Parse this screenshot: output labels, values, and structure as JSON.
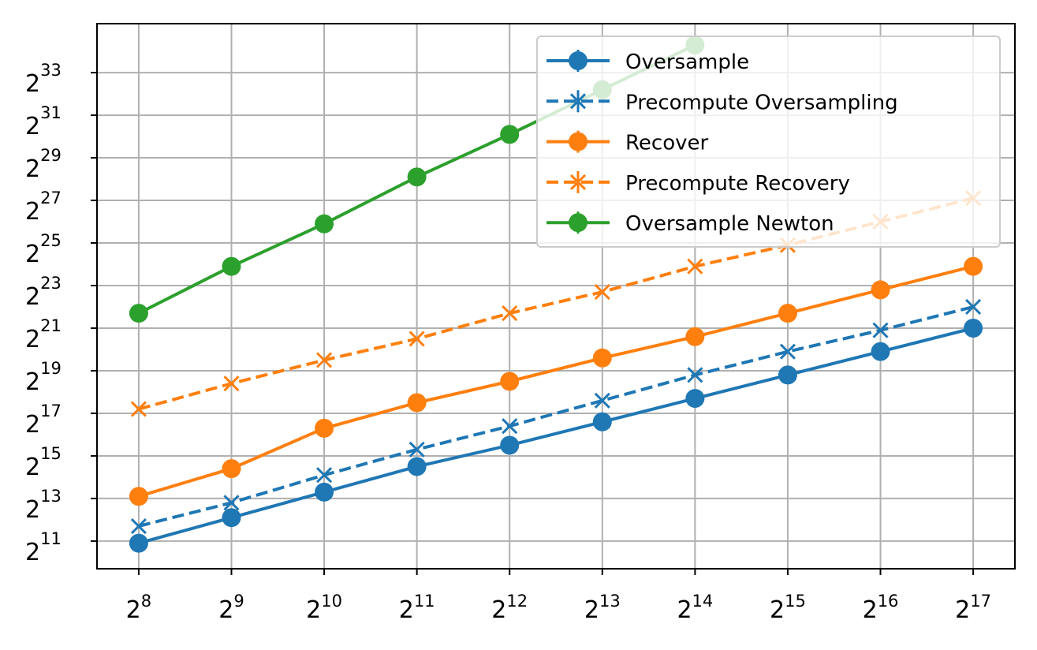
{
  "chart_data": {
    "type": "line",
    "title": "",
    "xlabel": "",
    "ylabel": "",
    "x_scale": "log2",
    "y_scale": "log2",
    "x_exponents": [
      8,
      9,
      10,
      11,
      12,
      13,
      14,
      15,
      16,
      17
    ],
    "xticks": [
      {
        "base": "2",
        "exp": "8"
      },
      {
        "base": "2",
        "exp": "9"
      },
      {
        "base": "2",
        "exp": "10"
      },
      {
        "base": "2",
        "exp": "11"
      },
      {
        "base": "2",
        "exp": "12"
      },
      {
        "base": "2",
        "exp": "13"
      },
      {
        "base": "2",
        "exp": "14"
      },
      {
        "base": "2",
        "exp": "15"
      },
      {
        "base": "2",
        "exp": "16"
      },
      {
        "base": "2",
        "exp": "17"
      }
    ],
    "yticks": [
      {
        "base": "2",
        "exp": "11"
      },
      {
        "base": "2",
        "exp": "13"
      },
      {
        "base": "2",
        "exp": "15"
      },
      {
        "base": "2",
        "exp": "17"
      },
      {
        "base": "2",
        "exp": "19"
      },
      {
        "base": "2",
        "exp": "21"
      },
      {
        "base": "2",
        "exp": "23"
      },
      {
        "base": "2",
        "exp": "25"
      },
      {
        "base": "2",
        "exp": "27"
      },
      {
        "base": "2",
        "exp": "29"
      },
      {
        "base": "2",
        "exp": "31"
      },
      {
        "base": "2",
        "exp": "33"
      }
    ],
    "y_exponent_range": [
      9.7,
      35.3
    ],
    "x_exponent_range": [
      7.55,
      17.45
    ],
    "grid": true,
    "legend_position": "top-right",
    "series": [
      {
        "name": "Oversample",
        "color": "#1f77b4",
        "marker": "circle",
        "linestyle": "solid",
        "y_exponents": [
          10.9,
          12.1,
          13.3,
          14.5,
          15.5,
          16.6,
          17.7,
          18.8,
          19.9,
          21.0
        ]
      },
      {
        "name": "Precompute Oversampling",
        "color": "#1f77b4",
        "marker": "x",
        "linestyle": "dashed",
        "y_exponents": [
          11.7,
          12.8,
          14.1,
          15.3,
          16.4,
          17.6,
          18.8,
          19.9,
          20.9,
          22.0
        ]
      },
      {
        "name": "Recover",
        "color": "#ff7f0e",
        "marker": "circle",
        "linestyle": "solid",
        "y_exponents": [
          13.1,
          14.4,
          16.3,
          17.5,
          18.5,
          19.6,
          20.6,
          21.7,
          22.8,
          23.9
        ]
      },
      {
        "name": "Precompute Recovery",
        "color": "#ff7f0e",
        "marker": "x",
        "linestyle": "dashed",
        "y_exponents": [
          17.2,
          18.4,
          19.5,
          20.5,
          21.7,
          22.7,
          23.9,
          24.9,
          26.0,
          27.1
        ]
      },
      {
        "name": "Oversample Newton",
        "color": "#2ca02c",
        "marker": "circle",
        "linestyle": "solid",
        "y_exponents": [
          21.7,
          23.9,
          25.9,
          28.1,
          30.1,
          32.2,
          34.3
        ]
      }
    ]
  }
}
